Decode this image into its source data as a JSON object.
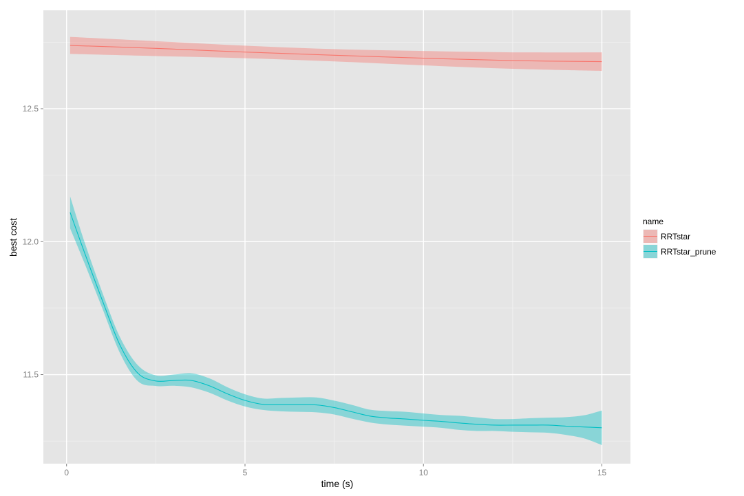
{
  "chart_data": {
    "type": "line",
    "title": "",
    "xlabel": "time (s)",
    "ylabel": "best cost",
    "xlim": [
      -0.65,
      15.8
    ],
    "ylim": [
      11.165,
      12.87
    ],
    "x_ticks": [
      {
        "value": 0,
        "label": "0"
      },
      {
        "value": 5,
        "label": "5"
      },
      {
        "value": 10,
        "label": "10"
      },
      {
        "value": 15,
        "label": "15"
      }
    ],
    "y_ticks": [
      {
        "value": 11.5,
        "label": "11.5"
      },
      {
        "value": 12.0,
        "label": "12.0"
      },
      {
        "value": 12.5,
        "label": "12.5"
      }
    ],
    "grid": true,
    "legend": {
      "title": "name",
      "position": "right"
    },
    "series": [
      {
        "name": "RRTstar",
        "color": "#F8766D",
        "ribbon_color": "#F8766D",
        "x": [
          0.1,
          2.5,
          5.0,
          7.5,
          10.0,
          12.5,
          15.0
        ],
        "y": [
          12.738,
          12.727,
          12.713,
          12.701,
          12.69,
          12.681,
          12.677
        ],
        "lower": [
          12.706,
          12.698,
          12.69,
          12.678,
          12.663,
          12.65,
          12.642
        ],
        "upper": [
          12.77,
          12.754,
          12.737,
          12.724,
          12.717,
          12.712,
          12.712
        ]
      },
      {
        "name": "RRTstar_prune",
        "color": "#00BFC4",
        "ribbon_color": "#00BFC4",
        "x": [
          0.1,
          0.5,
          1.0,
          1.5,
          2.0,
          2.5,
          3.0,
          3.5,
          4.0,
          4.5,
          5.0,
          5.5,
          6.0,
          6.5,
          7.0,
          7.5,
          8.0,
          8.5,
          9.0,
          9.5,
          10.0,
          10.5,
          11.0,
          11.5,
          12.0,
          12.5,
          13.0,
          13.5,
          14.0,
          14.5,
          15.0
        ],
        "y": [
          12.11,
          11.96,
          11.78,
          11.61,
          11.505,
          11.476,
          11.478,
          11.478,
          11.458,
          11.428,
          11.403,
          11.388,
          11.387,
          11.387,
          11.386,
          11.376,
          11.36,
          11.344,
          11.337,
          11.333,
          11.328,
          11.324,
          11.318,
          11.313,
          11.31,
          11.31,
          11.31,
          11.31,
          11.306,
          11.303,
          11.3
        ],
        "lower": [
          12.05,
          11.92,
          11.75,
          11.58,
          11.475,
          11.457,
          11.458,
          11.452,
          11.432,
          11.403,
          11.38,
          11.367,
          11.362,
          11.36,
          11.358,
          11.35,
          11.334,
          11.32,
          11.312,
          11.308,
          11.304,
          11.3,
          11.292,
          11.288,
          11.288,
          11.285,
          11.283,
          11.281,
          11.273,
          11.26,
          11.235
        ],
        "upper": [
          12.17,
          12.0,
          11.81,
          11.64,
          11.535,
          11.497,
          11.5,
          11.505,
          11.486,
          11.453,
          11.426,
          11.41,
          11.412,
          11.414,
          11.414,
          11.402,
          11.386,
          11.368,
          11.363,
          11.36,
          11.354,
          11.348,
          11.345,
          11.339,
          11.333,
          11.333,
          11.336,
          11.338,
          11.34,
          11.347,
          11.365
        ]
      }
    ]
  }
}
